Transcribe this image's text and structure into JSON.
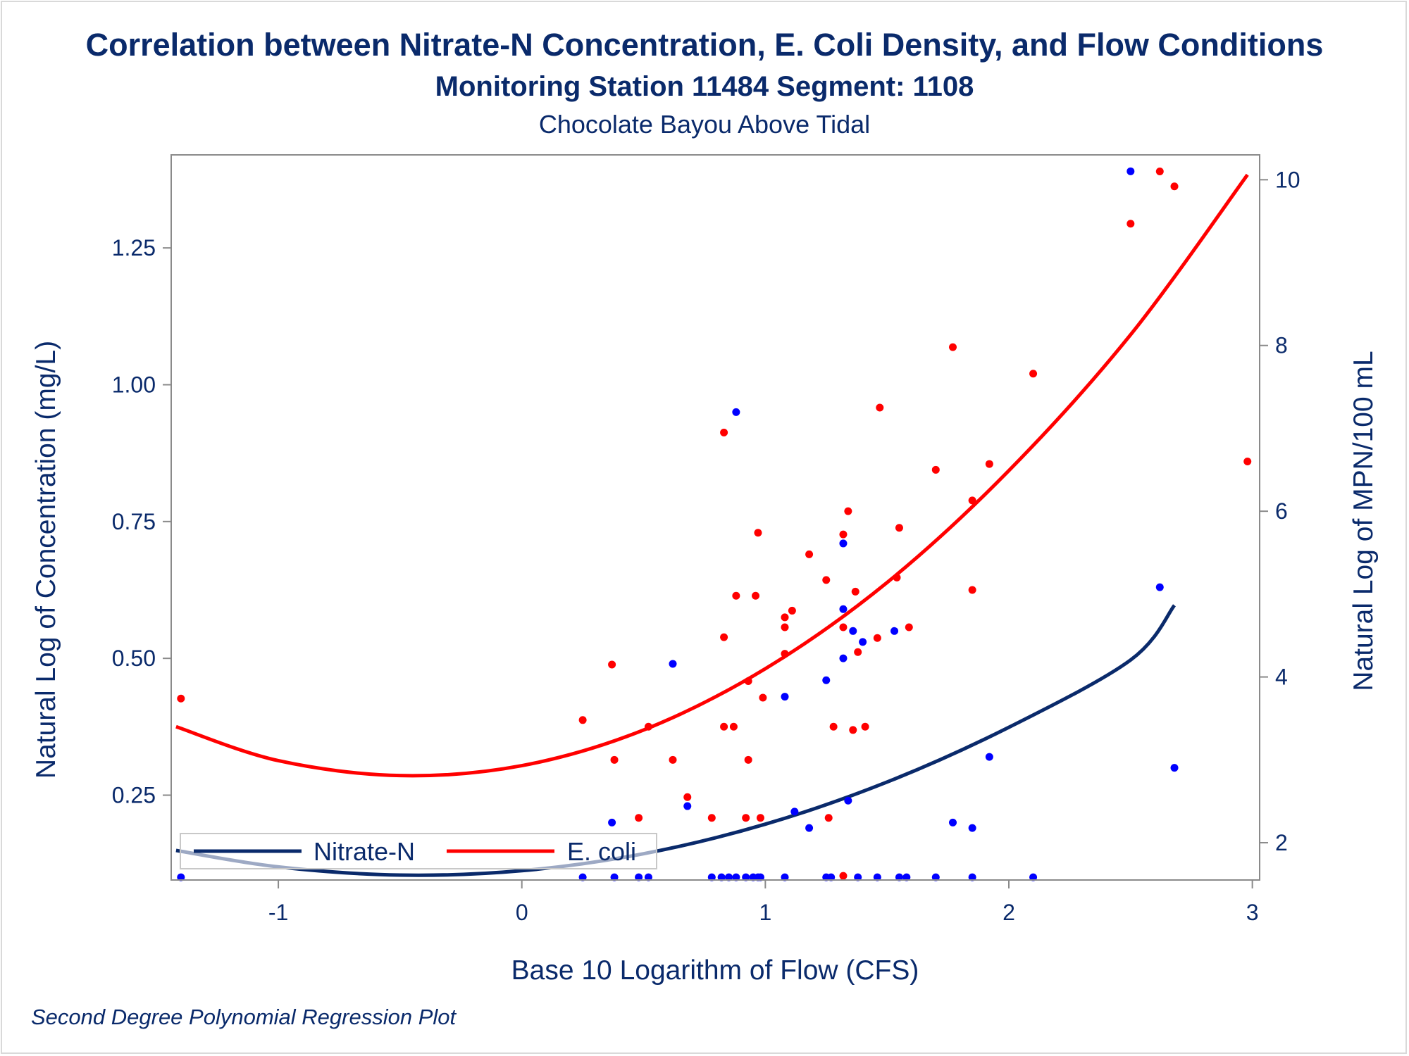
{
  "titles": {
    "main": "Correlation between Nitrate-N Concentration, E. Coli Density, and Flow Conditions",
    "sub1": "Monitoring Station 11484 Segment: 1108",
    "sub2": "Chocolate Bayou Above Tidal"
  },
  "footnote": "Second Degree Polynomial Regression Plot",
  "colors": {
    "text": "#0a2a6b",
    "axis": "#8a8a8a",
    "nitrate_line": "#0a2a6b",
    "nitrate_points": "#0000ff",
    "ecoli": "#ff0000"
  },
  "chart_data": {
    "type": "scatter",
    "xlabel": "Base 10 Logarithm of Flow (CFS)",
    "ylabel_left": "Natural Log of Concentration (mg/L)",
    "ylabel_right": "Natural Log of MPN/100 mL",
    "xlim": [
      -1.44,
      3.03
    ],
    "ylim_left": [
      0.095,
      1.42
    ],
    "ylim_right": [
      1.55,
      10.3
    ],
    "xticks": [
      -1,
      0,
      1,
      2,
      3
    ],
    "xtick_labels": [
      "-1",
      "0",
      "1",
      "2",
      "3"
    ],
    "yticks_left": [
      0.25,
      0.5,
      0.75,
      1.0,
      1.25
    ],
    "ytick_labels_left": [
      "0.25",
      "0.50",
      "0.75",
      "1.00",
      "1.25"
    ],
    "yticks_right": [
      2,
      4,
      6,
      8,
      10
    ],
    "ytick_labels_right": [
      "2",
      "4",
      "6",
      "8",
      "10"
    ],
    "grid": false,
    "legend": {
      "position": "bottom-left, inside plot",
      "entries": [
        "Nitrate-N",
        "E. coli"
      ]
    },
    "series": [
      {
        "name": "Nitrate-N",
        "axis": "left",
        "points": [
          [
            -1.4,
            0.1
          ],
          [
            0.25,
            0.1
          ],
          [
            0.37,
            0.2
          ],
          [
            0.38,
            0.1
          ],
          [
            0.48,
            0.1
          ],
          [
            0.52,
            0.1
          ],
          [
            0.62,
            0.49
          ],
          [
            0.68,
            0.23
          ],
          [
            0.78,
            0.1
          ],
          [
            0.82,
            0.1
          ],
          [
            0.85,
            0.1
          ],
          [
            0.88,
            0.1
          ],
          [
            0.88,
            0.95
          ],
          [
            0.92,
            0.1
          ],
          [
            0.95,
            0.1
          ],
          [
            0.97,
            0.1
          ],
          [
            0.98,
            0.1
          ],
          [
            1.08,
            0.43
          ],
          [
            1.08,
            0.1
          ],
          [
            1.12,
            0.22
          ],
          [
            1.18,
            0.19
          ],
          [
            1.25,
            0.46
          ],
          [
            1.25,
            0.1
          ],
          [
            1.27,
            0.1
          ],
          [
            1.32,
            0.71
          ],
          [
            1.32,
            0.59
          ],
          [
            1.32,
            0.5
          ],
          [
            1.34,
            0.24
          ],
          [
            1.36,
            0.55
          ],
          [
            1.38,
            0.1
          ],
          [
            1.4,
            0.53
          ],
          [
            1.46,
            0.1
          ],
          [
            1.53,
            0.55
          ],
          [
            1.55,
            0.1
          ],
          [
            1.58,
            0.1
          ],
          [
            1.7,
            0.1
          ],
          [
            1.77,
            0.2
          ],
          [
            1.85,
            0.19
          ],
          [
            1.85,
            0.1
          ],
          [
            1.92,
            0.32
          ],
          [
            2.1,
            0.1
          ],
          [
            2.5,
            1.39
          ],
          [
            2.62,
            0.63
          ],
          [
            2.68,
            0.3
          ]
        ],
        "fit": [
          [
            -1.42,
            0.149
          ],
          [
            -1.0,
            0.119
          ],
          [
            -0.5,
            0.104
          ],
          [
            0.0,
            0.112
          ],
          [
            0.5,
            0.143
          ],
          [
            1.0,
            0.197
          ],
          [
            1.5,
            0.274
          ],
          [
            2.0,
            0.374
          ],
          [
            2.5,
            0.497
          ],
          [
            2.68,
            0.597
          ]
        ]
      },
      {
        "name": "E. coli",
        "axis": "right",
        "points": [
          [
            -1.4,
            3.74
          ],
          [
            0.25,
            3.48
          ],
          [
            0.37,
            4.15
          ],
          [
            0.38,
            3.0
          ],
          [
            0.48,
            2.3
          ],
          [
            0.52,
            3.4
          ],
          [
            0.62,
            3.0
          ],
          [
            0.68,
            2.55
          ],
          [
            0.78,
            2.3
          ],
          [
            0.83,
            6.95
          ],
          [
            0.83,
            4.48
          ],
          [
            0.83,
            3.4
          ],
          [
            0.87,
            3.4
          ],
          [
            0.88,
            4.98
          ],
          [
            0.92,
            2.3
          ],
          [
            0.93,
            3.95
          ],
          [
            0.93,
            3.0
          ],
          [
            0.96,
            4.98
          ],
          [
            0.97,
            5.74
          ],
          [
            0.98,
            2.3
          ],
          [
            0.99,
            3.75
          ],
          [
            1.08,
            4.72
          ],
          [
            1.08,
            4.6
          ],
          [
            1.08,
            4.28
          ],
          [
            1.11,
            4.8
          ],
          [
            1.18,
            5.48
          ],
          [
            1.25,
            5.17
          ],
          [
            1.26,
            2.3
          ],
          [
            1.28,
            3.4
          ],
          [
            1.32,
            5.72
          ],
          [
            1.32,
            4.6
          ],
          [
            1.32,
            1.6
          ],
          [
            1.34,
            6.0
          ],
          [
            1.36,
            3.36
          ],
          [
            1.37,
            5.03
          ],
          [
            1.38,
            4.3
          ],
          [
            1.41,
            3.4
          ],
          [
            1.46,
            4.47
          ],
          [
            1.47,
            7.25
          ],
          [
            1.54,
            5.2
          ],
          [
            1.55,
            5.8
          ],
          [
            1.59,
            4.6
          ],
          [
            1.7,
            6.5
          ],
          [
            1.77,
            7.98
          ],
          [
            1.85,
            6.13
          ],
          [
            1.85,
            5.05
          ],
          [
            1.92,
            6.57
          ],
          [
            2.1,
            7.66
          ],
          [
            2.5,
            9.47
          ],
          [
            2.62,
            10.1
          ],
          [
            2.68,
            9.92
          ],
          [
            2.98,
            6.6
          ]
        ],
        "fit": [
          [
            -1.42,
            3.4
          ],
          [
            -1.0,
            2.99
          ],
          [
            -0.5,
            2.81
          ],
          [
            0.0,
            2.93
          ],
          [
            0.5,
            3.36
          ],
          [
            1.0,
            4.1
          ],
          [
            1.5,
            5.14
          ],
          [
            2.0,
            6.49
          ],
          [
            2.5,
            8.13
          ],
          [
            2.98,
            10.06
          ]
        ]
      }
    ]
  }
}
